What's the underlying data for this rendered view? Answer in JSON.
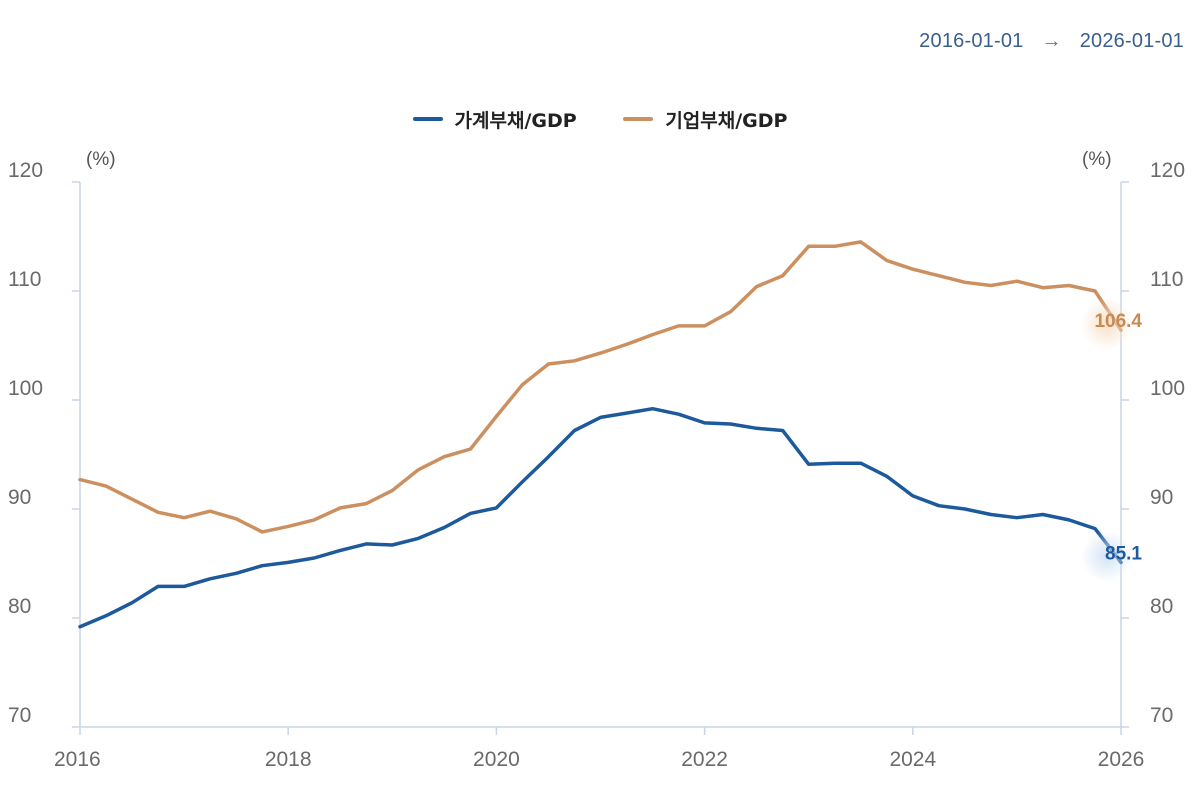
{
  "header": {
    "start_date": "2016-01-01",
    "arrow": "→",
    "end_date": "2026-01-01"
  },
  "chart_data": {
    "type": "line",
    "xlim": [
      2016,
      2026
    ],
    "ylim": [
      70,
      120
    ],
    "y_ticks": [
      70,
      80,
      90,
      100,
      110,
      120
    ],
    "x_ticks": [
      2016,
      2018,
      2020,
      2022,
      2024,
      2026
    ],
    "x_tick_labels": [
      "2016",
      "2018",
      "2020",
      "2022",
      "2024",
      "2026"
    ],
    "y_unit_left": "(%)",
    "y_unit_right": "(%)",
    "legend_position": "top-center",
    "grid": false,
    "series": [
      {
        "name": "가계부채/GDP",
        "color": "#1d5a9c",
        "end_label": "85.1",
        "x": [
          2016.0,
          2016.25,
          2016.5,
          2016.75,
          2017.0,
          2017.25,
          2017.5,
          2017.75,
          2018.0,
          2018.25,
          2018.5,
          2018.75,
          2019.0,
          2019.25,
          2019.5,
          2019.75,
          2020.0,
          2020.25,
          2020.5,
          2020.75,
          2021.0,
          2021.25,
          2021.5,
          2021.75,
          2022.0,
          2022.25,
          2022.5,
          2022.75,
          2023.0,
          2023.25,
          2023.5,
          2023.75,
          2024.0,
          2024.25,
          2024.5,
          2024.75,
          2025.0,
          2025.25,
          2025.5,
          2025.75,
          2026.0
        ],
        "values": [
          79.2,
          80.2,
          81.4,
          82.9,
          82.9,
          83.6,
          84.1,
          84.8,
          85.1,
          85.5,
          86.2,
          86.8,
          86.7,
          87.3,
          88.3,
          89.6,
          90.1,
          92.5,
          94.8,
          97.2,
          98.4,
          98.8,
          99.2,
          98.7,
          97.9,
          97.8,
          97.4,
          97.2,
          94.1,
          94.2,
          94.2,
          93.0,
          91.2,
          90.3,
          90.0,
          89.5,
          89.2,
          89.5,
          89.0,
          88.2,
          85.1
        ]
      },
      {
        "name": "기업부채/GDP",
        "color": "#cc9060",
        "end_label": "106.4",
        "x": [
          2016.0,
          2016.25,
          2016.5,
          2016.75,
          2017.0,
          2017.25,
          2017.5,
          2017.75,
          2018.0,
          2018.25,
          2018.5,
          2018.75,
          2019.0,
          2019.25,
          2019.5,
          2019.75,
          2020.0,
          2020.25,
          2020.5,
          2020.75,
          2021.0,
          2021.25,
          2021.5,
          2021.75,
          2022.0,
          2022.25,
          2022.5,
          2022.75,
          2023.0,
          2023.25,
          2023.5,
          2023.75,
          2024.0,
          2024.25,
          2024.5,
          2024.75,
          2025.0,
          2025.25,
          2025.5,
          2025.75,
          2026.0
        ],
        "values": [
          92.7,
          92.1,
          90.9,
          89.7,
          89.2,
          89.8,
          89.1,
          87.9,
          88.4,
          89.0,
          90.1,
          90.5,
          91.7,
          93.6,
          94.8,
          95.5,
          98.5,
          101.4,
          103.3,
          103.6,
          104.3,
          105.1,
          106.0,
          106.8,
          106.8,
          108.1,
          110.4,
          111.4,
          114.1,
          114.1,
          114.5,
          112.8,
          112.0,
          111.4,
          110.8,
          110.5,
          110.9,
          110.3,
          110.5,
          110.0,
          106.4
        ]
      }
    ]
  }
}
